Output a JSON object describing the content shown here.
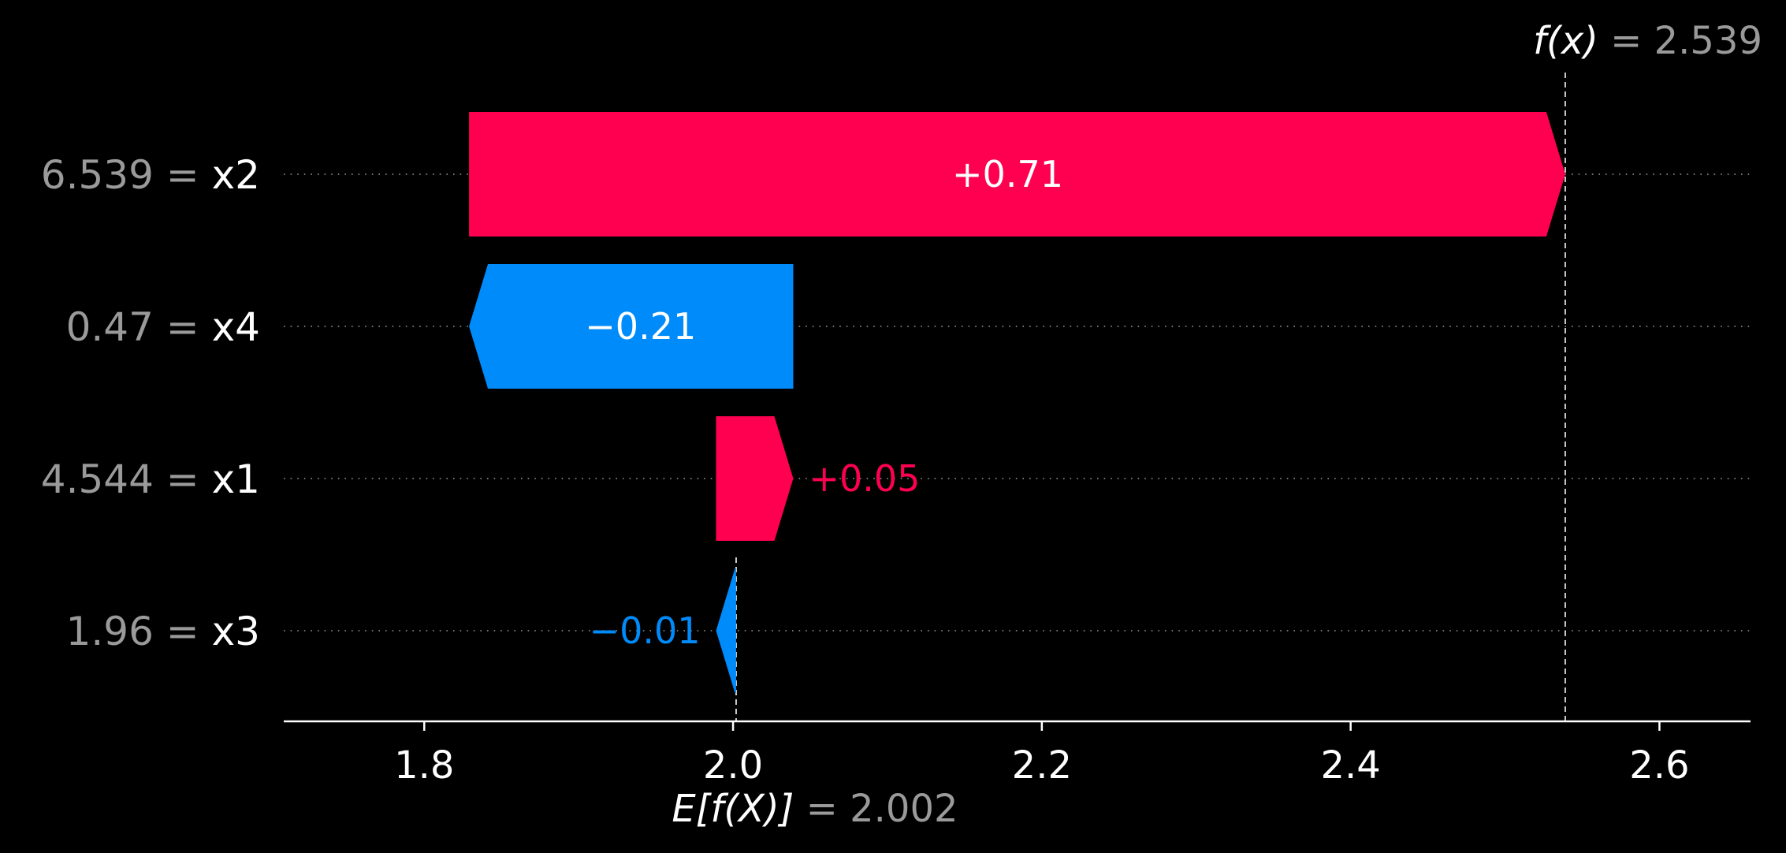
{
  "chart_data": {
    "type": "waterfall",
    "background": "#000000",
    "colors": {
      "positive": "#ff0051",
      "negative": "#008bfb",
      "axis": "#ffffff",
      "muted": "#9a9a9a"
    },
    "base_value": 2.002,
    "output_value": 2.539,
    "base_label": {
      "name": "E[f(X)]",
      "eq": " = ",
      "value": "2.002"
    },
    "output_label": {
      "name": "f(x)",
      "eq": " = ",
      "value": "2.539"
    },
    "features": [
      {
        "value": "6.539",
        "eq": " = ",
        "name": "x2",
        "contribution": 0.71,
        "label": "+0.71",
        "start": 1.829,
        "end": 2.539
      },
      {
        "value": "0.47",
        "eq": " = ",
        "name": "x4",
        "contribution": -0.21,
        "label": "−0.21",
        "start": 2.039,
        "end": 1.829
      },
      {
        "value": "4.544",
        "eq": " = ",
        "name": "x1",
        "contribution": 0.05,
        "label": "+0.05",
        "start": 1.989,
        "end": 2.039
      },
      {
        "value": "1.96",
        "eq": " = ",
        "name": "x3",
        "contribution": -0.01,
        "label": "−0.01",
        "start": 2.002,
        "end": 1.989
      }
    ],
    "x_ticks": [
      1.8,
      2.0,
      2.2,
      2.4,
      2.6
    ],
    "x_tick_labels": [
      "1.8",
      "2.0",
      "2.2",
      "2.4",
      "2.6"
    ],
    "xlim": [
      1.709,
      2.659
    ],
    "grid": "dotted row guides"
  }
}
